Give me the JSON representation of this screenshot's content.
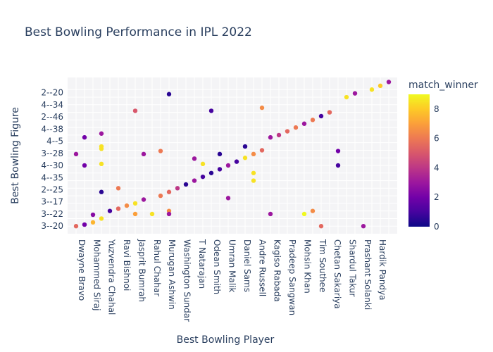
{
  "chart_data": {
    "type": "scatter",
    "title": "Best Bowling Performance in IPL 2022",
    "xlabel": "Best Bowling Player",
    "ylabel": "Best Bowling Figure",
    "x_visible_ticks": [
      "Dwayne Bravo",
      "Mohammed Siraj",
      "Yuzvendra Chahal",
      "Ravi Bishnoi",
      "Jasprit Bumrah",
      "Rahul Chahar",
      "Murugan Ashwin",
      "Washington Sundar",
      "T Natarajan",
      "Odean Smith",
      "Umran Malik",
      "Daniel Sams",
      "Andre Russell",
      "Kagiso Rabada",
      "Pradeep Sangwan",
      "Mohsin Khan",
      "Tim Southee",
      "Chetan Sakariya",
      "Shardul Takur",
      "Prashant Solanki",
      "Hardik Pandya"
    ],
    "y_visible_ticks": [
      "3--20",
      "3--22",
      "3--17",
      "2--25",
      "4--35",
      "4--30",
      "3--28",
      "4--5",
      "4--38",
      "2--46",
      "4--34",
      "2--20"
    ],
    "color_label": "match_winner",
    "color_range": [
      0,
      9
    ],
    "colorbar_ticks": [
      0,
      2,
      4,
      6,
      8
    ],
    "colorscale": [
      "#0d0887",
      "#46039f",
      "#7201a8",
      "#9c179e",
      "#bd3786",
      "#d8576b",
      "#ed7953",
      "#fb9f3a",
      "#fdca26",
      "#f0f921"
    ],
    "points": [
      {
        "x": 0,
        "y": 0,
        "c": 5.5
      },
      {
        "x": 0,
        "y": 9.5,
        "c": 3
      },
      {
        "x": 1,
        "y": 0.2,
        "c": 2
      },
      {
        "x": 1,
        "y": 8,
        "c": 2
      },
      {
        "x": 1,
        "y": 11.7,
        "c": 2
      },
      {
        "x": 2,
        "y": 0.5,
        "c": 7.5
      },
      {
        "x": 2,
        "y": 1.5,
        "c": 2.5
      },
      {
        "x": 3,
        "y": 1,
        "c": 8.5
      },
      {
        "x": 3,
        "y": 4.5,
        "c": 0.5
      },
      {
        "x": 3,
        "y": 8.2,
        "c": 8.5
      },
      {
        "x": 3,
        "y": 10.2,
        "c": 8.5
      },
      {
        "x": 3,
        "y": 10.5,
        "c": 8.5
      },
      {
        "x": 3,
        "y": 12.2,
        "c": 3
      },
      {
        "x": 4,
        "y": 2,
        "c": 1
      },
      {
        "x": 5,
        "y": 2.3,
        "c": 5.5
      },
      {
        "x": 5,
        "y": 5,
        "c": 6
      },
      {
        "x": 6,
        "y": 2.7,
        "c": 6.5
      },
      {
        "x": 7,
        "y": 3,
        "c": 8.5
      },
      {
        "x": 7,
        "y": 1.6,
        "c": 7
      },
      {
        "x": 7,
        "y": 15.2,
        "c": 5
      },
      {
        "x": 8,
        "y": 3.5,
        "c": 3
      },
      {
        "x": 8,
        "y": 9.5,
        "c": 3
      },
      {
        "x": 9,
        "y": 1.6,
        "c": 8.5
      },
      {
        "x": 10,
        "y": 4,
        "c": 6
      },
      {
        "x": 10,
        "y": 9.9,
        "c": 6
      },
      {
        "x": 11,
        "y": 4.5,
        "c": 5.5
      },
      {
        "x": 11,
        "y": 2,
        "c": 6.5
      },
      {
        "x": 11,
        "y": 1.6,
        "c": 3
      },
      {
        "x": 11,
        "y": 17.4,
        "c": 0.5
      },
      {
        "x": 12,
        "y": 5,
        "c": 4
      },
      {
        "x": 13,
        "y": 5.5,
        "c": 0.5
      },
      {
        "x": 14,
        "y": 6,
        "c": 3
      },
      {
        "x": 14,
        "y": 8.9,
        "c": 3
      },
      {
        "x": 15,
        "y": 6.5,
        "c": 1
      },
      {
        "x": 15,
        "y": 8.2,
        "c": 8.5
      },
      {
        "x": 16,
        "y": 7,
        "c": 0.5
      },
      {
        "x": 16,
        "y": 15.2,
        "c": 1
      },
      {
        "x": 17,
        "y": 7.5,
        "c": 1
      },
      {
        "x": 17,
        "y": 9.5,
        "c": 0.5
      },
      {
        "x": 18,
        "y": 8,
        "c": 3
      },
      {
        "x": 18,
        "y": 3.7,
        "c": 3
      },
      {
        "x": 19,
        "y": 8.5,
        "c": 1
      },
      {
        "x": 20,
        "y": 9,
        "c": 8.5
      },
      {
        "x": 20,
        "y": 10.5,
        "c": 0.5
      },
      {
        "x": 21,
        "y": 9.5,
        "c": 6.5
      },
      {
        "x": 21,
        "y": 7,
        "c": 8.5
      },
      {
        "x": 21,
        "y": 6,
        "c": 8.5
      },
      {
        "x": 22,
        "y": 10,
        "c": 5.5
      },
      {
        "x": 22,
        "y": 15.6,
        "c": 6.5
      },
      {
        "x": 23,
        "y": 1.6,
        "c": 3
      },
      {
        "x": 23,
        "y": 11.7,
        "c": 3
      },
      {
        "x": 24,
        "y": 12,
        "c": 4
      },
      {
        "x": 25,
        "y": 12.5,
        "c": 5.5
      },
      {
        "x": 26,
        "y": 13,
        "c": 6
      },
      {
        "x": 27,
        "y": 1.6,
        "c": 9
      },
      {
        "x": 27,
        "y": 13.5,
        "c": 3
      },
      {
        "x": 28,
        "y": 2,
        "c": 6.5
      },
      {
        "x": 28,
        "y": 14,
        "c": 6
      },
      {
        "x": 29,
        "y": 14.5,
        "c": 1
      },
      {
        "x": 29,
        "y": 0,
        "c": 5.5
      },
      {
        "x": 30,
        "y": 15,
        "c": 5.5
      },
      {
        "x": 31,
        "y": 9.9,
        "c": 2
      },
      {
        "x": 31,
        "y": 8,
        "c": 1
      },
      {
        "x": 32,
        "y": 17,
        "c": 8.5
      },
      {
        "x": 33,
        "y": 17.5,
        "c": 3
      },
      {
        "x": 34,
        "y": 0,
        "c": 3
      },
      {
        "x": 35,
        "y": 18,
        "c": 8.5
      },
      {
        "x": 36,
        "y": 18.5,
        "c": 8
      },
      {
        "x": 37,
        "y": 19,
        "c": 3
      }
    ]
  }
}
